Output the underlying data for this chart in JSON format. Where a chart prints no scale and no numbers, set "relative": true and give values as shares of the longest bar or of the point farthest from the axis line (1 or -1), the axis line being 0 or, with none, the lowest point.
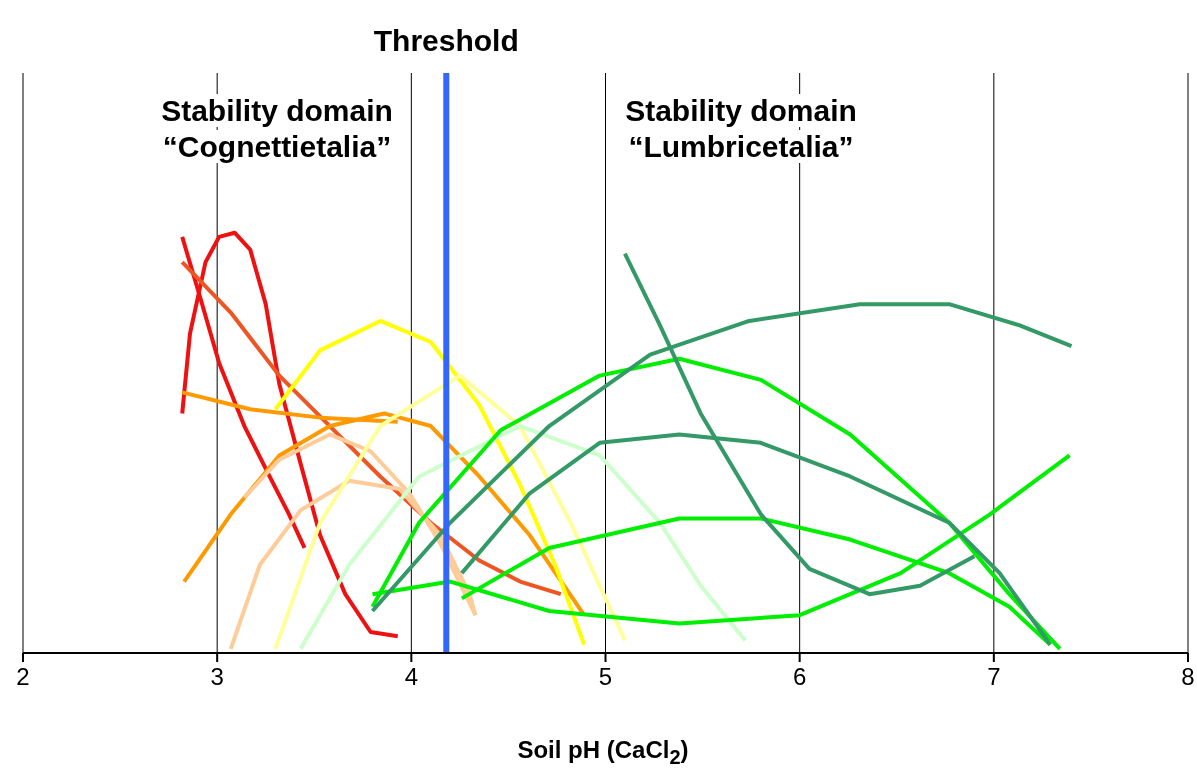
{
  "chart_data": {
    "type": "line",
    "relative": true,
    "xlabel": "Soil pH (CaCl$_{2}$)",
    "xlim": [
      2,
      8
    ],
    "xticks": [
      2,
      3,
      4,
      5,
      6,
      7,
      8
    ],
    "grid": "x",
    "marker": "none",
    "line_style": "solid",
    "ref_lines": [
      {
        "axis": "x",
        "value": 4.18,
        "label": "Threshold",
        "color": "#3366ff"
      }
    ],
    "annotations": [
      "Stability domain\n“Cognettietalia”",
      "Stability domain\n“Lumbricetalia”"
    ],
    "series": [
      {
        "color": "#ee1111",
        "x": [
          2.82,
          2.91,
          3.01,
          3.14,
          3.27,
          3.37,
          3.45
        ],
        "values": [
          0.99,
          0.85,
          0.69,
          0.54,
          0.42,
          0.33,
          0.25
        ]
      },
      {
        "color": "#ee1111",
        "x": [
          2.82,
          2.86,
          2.94,
          3.01,
          3.09,
          3.17,
          3.25,
          3.32,
          3.43,
          3.53,
          3.66,
          3.79,
          3.93
        ],
        "values": [
          0.57,
          0.76,
          0.93,
          0.99,
          1.0,
          0.96,
          0.83,
          0.64,
          0.45,
          0.28,
          0.14,
          0.05,
          0.04
        ]
      },
      {
        "color": "#ee5522",
        "x": [
          2.82,
          3.07,
          3.32,
          3.58,
          3.84,
          4.1,
          4.35,
          4.56,
          4.77
        ],
        "values": [
          0.93,
          0.81,
          0.66,
          0.54,
          0.42,
          0.31,
          0.22,
          0.17,
          0.14
        ]
      },
      {
        "color": "#ff9900",
        "x": [
          2.82,
          3.17,
          3.53,
          3.93
        ],
        "values": [
          0.62,
          0.58,
          0.56,
          0.55
        ]
      },
      {
        "color": "#ff9900",
        "x": [
          2.83,
          3.07,
          3.32,
          3.58,
          3.86,
          4.1,
          4.35,
          4.61,
          4.89
        ],
        "values": [
          0.17,
          0.33,
          0.47,
          0.54,
          0.57,
          0.54,
          0.42,
          0.28,
          0.09
        ]
      },
      {
        "color": "#ffcc99",
        "x": [
          3.14,
          3.32,
          3.58,
          3.79,
          3.99,
          4.15,
          4.33
        ],
        "values": [
          0.37,
          0.46,
          0.52,
          0.48,
          0.38,
          0.26,
          0.09
        ]
      },
      {
        "color": "#ffcc99",
        "x": [
          3.07,
          3.22,
          3.43,
          3.68,
          3.94,
          4.15,
          4.3,
          4.33
        ],
        "values": [
          0.01,
          0.21,
          0.34,
          0.41,
          0.39,
          0.28,
          0.14,
          0.09
        ]
      },
      {
        "color": "#ffff00",
        "x": [
          3.3,
          3.53,
          3.84,
          4.1,
          4.35,
          4.56,
          4.74,
          4.89
        ],
        "values": [
          0.58,
          0.72,
          0.79,
          0.74,
          0.59,
          0.4,
          0.21,
          0.02
        ]
      },
      {
        "color": "#ffff99",
        "x": [
          3.3,
          3.53,
          3.84,
          4.25,
          4.56,
          4.82,
          5.1
        ],
        "values": [
          0.01,
          0.31,
          0.54,
          0.66,
          0.54,
          0.31,
          0.03
        ]
      },
      {
        "color": "#ccffcc",
        "x": [
          3.43,
          3.68,
          4.04,
          4.56,
          4.97,
          5.28,
          5.49,
          5.72
        ],
        "values": [
          0.01,
          0.21,
          0.42,
          0.54,
          0.47,
          0.31,
          0.16,
          0.03
        ]
      },
      {
        "color": "#00ee00",
        "x": [
          3.8,
          4.04,
          4.46,
          4.97,
          5.38,
          5.8,
          6.26,
          6.77,
          7.08,
          7.34
        ],
        "values": [
          0.11,
          0.31,
          0.53,
          0.66,
          0.7,
          0.65,
          0.52,
          0.31,
          0.14,
          0.01
        ]
      },
      {
        "color": "#00ee00",
        "x": [
          3.8,
          4.2,
          4.71,
          5.38,
          6.0,
          6.52,
          6.98,
          7.39
        ],
        "values": [
          0.14,
          0.17,
          0.1,
          0.07,
          0.09,
          0.19,
          0.33,
          0.47
        ]
      },
      {
        "color": "#00ee00",
        "x": [
          4.26,
          4.71,
          5.38,
          5.8,
          6.26,
          6.77,
          7.08,
          7.29
        ],
        "values": [
          0.13,
          0.25,
          0.32,
          0.32,
          0.27,
          0.19,
          0.11,
          0.02
        ]
      },
      {
        "color": "#339966",
        "x": [
          3.8,
          4.2,
          4.71,
          5.23,
          5.74,
          6.31,
          6.77,
          7.13,
          7.4
        ],
        "values": [
          0.1,
          0.31,
          0.54,
          0.71,
          0.79,
          0.83,
          0.83,
          0.78,
          0.73
        ]
      },
      {
        "color": "#339966",
        "x": [
          4.26,
          4.61,
          4.97,
          5.38,
          5.8,
          6.26,
          6.77,
          7.03,
          7.29
        ],
        "values": [
          0.19,
          0.38,
          0.5,
          0.52,
          0.5,
          0.42,
          0.31,
          0.19,
          0.02
        ]
      },
      {
        "color": "#339966",
        "x": [
          5.1,
          5.28,
          5.49,
          5.8,
          6.05,
          6.36,
          6.62,
          6.9
        ],
        "values": [
          0.95,
          0.78,
          0.57,
          0.33,
          0.2,
          0.14,
          0.16,
          0.23
        ]
      }
    ]
  }
}
